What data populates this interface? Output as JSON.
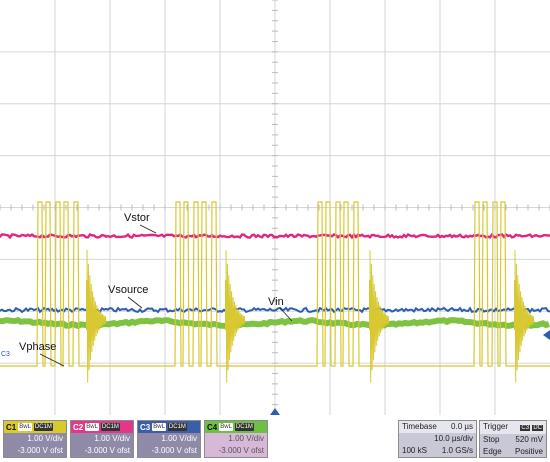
{
  "traces": {
    "vstor": {
      "label": "Vstor",
      "color": "#e0267f"
    },
    "vsource": {
      "label": "Vsource",
      "color": "#2b5fb0"
    },
    "vin": {
      "label": "Vin",
      "color": "#7ec242"
    },
    "vphase": {
      "label": "Vphase",
      "color": "#d8c832"
    }
  },
  "ground_marker": "C3",
  "channels": [
    {
      "name": "C1",
      "tags": [
        "BwL",
        "DC1M"
      ],
      "scale": "1.00 V/div",
      "offset": "-3.000 V ofst"
    },
    {
      "name": "C2",
      "tags": [
        "BwL",
        "DC1M"
      ],
      "scale": "1.00 V/div",
      "offset": "-3.000 V ofst"
    },
    {
      "name": "C3",
      "tags": [
        "BwL",
        "DC1M"
      ],
      "scale": "1.00 V/div",
      "offset": "-3.000 V ofst"
    },
    {
      "name": "C4",
      "tags": [
        "BwL",
        "DC1M"
      ],
      "scale": "1.00 V/div",
      "offset": "-3.000 V ofst"
    }
  ],
  "timebase": {
    "title": "Timebase",
    "value": "0.0 µs",
    "div": "10.0 µs/div",
    "samples": "100 kS",
    "rate": "1.0 GS/s"
  },
  "trigger": {
    "title": "Trigger",
    "source": "C3",
    "coupling": "DC",
    "mode": "Stop",
    "level": "520 mV",
    "type": "Edge",
    "slope": "Positive"
  }
}
